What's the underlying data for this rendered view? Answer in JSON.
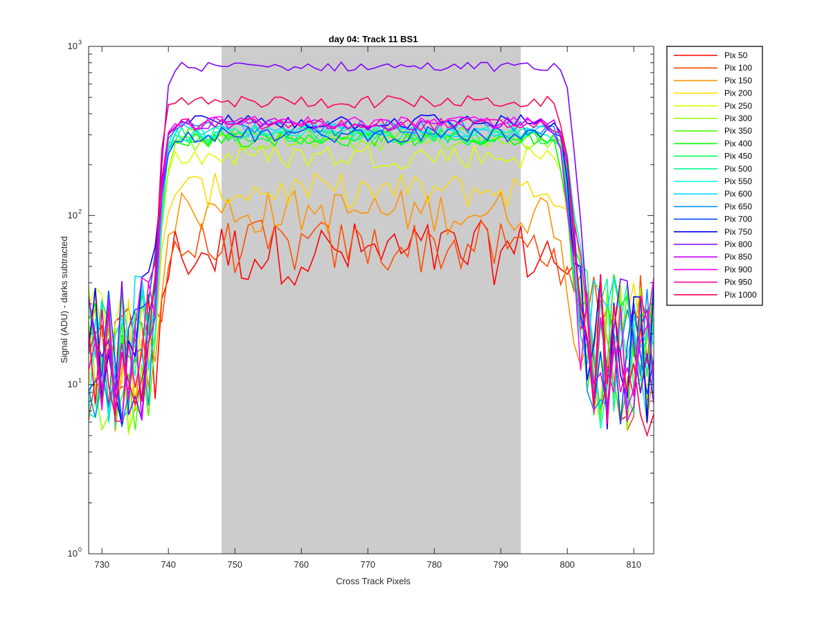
{
  "chart_data": {
    "type": "line",
    "title": "day 04: Track 11  BS1",
    "xlabel": "Cross Track Pixels",
    "ylabel": "Signal (ADU) - darks subtracted",
    "xlim": [
      728,
      813
    ],
    "ylim": [
      1,
      1000
    ],
    "yscale": "log",
    "xticks": [
      730,
      740,
      750,
      760,
      770,
      780,
      790,
      800,
      810
    ],
    "yticks": [
      {
        "value": 1,
        "base": "10",
        "exp": "0"
      },
      {
        "value": 10,
        "base": "10",
        "exp": "1"
      },
      {
        "value": 100,
        "base": "10",
        "exp": "2"
      },
      {
        "value": 1000,
        "base": "10",
        "exp": "3"
      }
    ],
    "grid": false,
    "legend_position": "outside-right",
    "shaded_region": {
      "x_start": 748,
      "x_end": 793,
      "color": "#cccccc"
    },
    "series": [
      {
        "name": "Pix 50",
        "color": "#ff0000",
        "plateau": 60,
        "noise": 0.2
      },
      {
        "name": "Pix 100",
        "color": "#ff4a00",
        "plateau": 65,
        "noise": 0.17
      },
      {
        "name": "Pix 150",
        "color": "#ff9200",
        "plateau": 105,
        "noise": 0.14
      },
      {
        "name": "Pix 200",
        "color": "#ffdb00",
        "plateau": 140,
        "noise": 0.11
      },
      {
        "name": "Pix 250",
        "color": "#dbff00",
        "plateau": 225,
        "noise": 0.08
      },
      {
        "name": "Pix 300",
        "color": "#92ff00",
        "plateau": 270,
        "noise": 0.05
      },
      {
        "name": "Pix 350",
        "color": "#4aff00",
        "plateau": 300,
        "noise": 0.05
      },
      {
        "name": "Pix 400",
        "color": "#00ff00",
        "plateau": 285,
        "noise": 0.05
      },
      {
        "name": "Pix 450",
        "color": "#00ff4a",
        "plateau": 290,
        "noise": 0.05
      },
      {
        "name": "Pix 500",
        "color": "#00ff92",
        "plateau": 300,
        "noise": 0.05
      },
      {
        "name": "Pix 550",
        "color": "#00ffdb",
        "plateau": 310,
        "noise": 0.05
      },
      {
        "name": "Pix 600",
        "color": "#00dbff",
        "plateau": 320,
        "noise": 0.05
      },
      {
        "name": "Pix 650",
        "color": "#0092ff",
        "plateau": 330,
        "noise": 0.05
      },
      {
        "name": "Pix 700",
        "color": "#004aff",
        "plateau": 300,
        "noise": 0.05
      },
      {
        "name": "Pix 750",
        "color": "#0000ff",
        "plateau": 360,
        "noise": 0.05
      },
      {
        "name": "Pix 800",
        "color": "#8000ff",
        "plateau": 760,
        "noise": 0.03
      },
      {
        "name": "Pix 850",
        "color": "#c800ff",
        "plateau": 350,
        "noise": 0.04
      },
      {
        "name": "Pix 900",
        "color": "#ff00ff",
        "plateau": 355,
        "noise": 0.04
      },
      {
        "name": "Pix 950",
        "color": "#ff00a0",
        "plateau": 345,
        "noise": 0.04
      },
      {
        "name": "Pix 1000",
        "color": "#ff0050",
        "plateau": 470,
        "noise": 0.04
      }
    ],
    "x_range_step": 1,
    "edge_rise_center": 740,
    "edge_fall_center": 800,
    "background_level": 15
  }
}
